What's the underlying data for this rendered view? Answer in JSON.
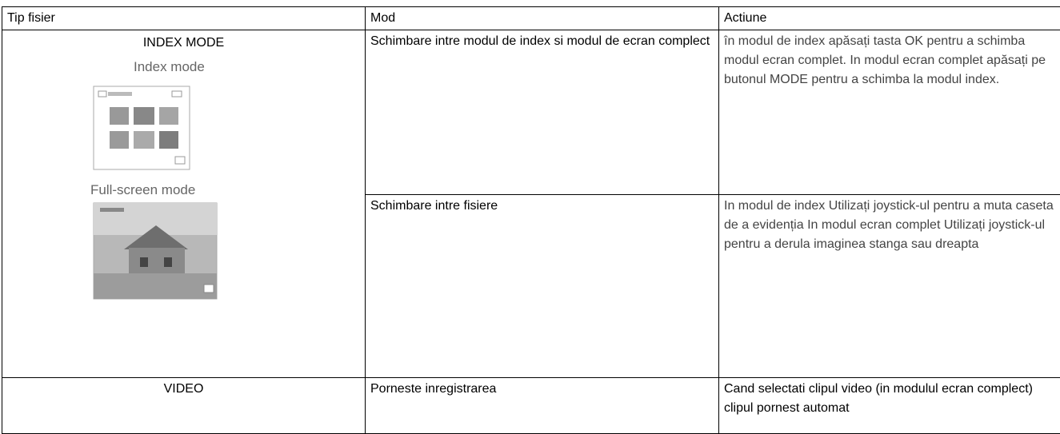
{
  "table": {
    "headers": [
      "Tip fisier",
      "Mod",
      "Actiune"
    ],
    "rows": [
      {
        "file_type": "INDEX MODE",
        "image_labels": [
          "Index mode",
          "Full-screen mode"
        ],
        "actions": [
          {
            "mode": "Schimbare intre modul de index si modul de ecran complect",
            "action": "în modul de index apăsați tasta OK pentru a schimba modul ecran complet. In modul ecran complet apăsați pe butonul MODE pentru a schimba la modul index."
          },
          {
            "mode": "Schimbare intre fisiere",
            "action": "In modul de index Utilizați joystick-ul pentru a muta caseta de a evidenția In modul ecran complet Utilizați joystick-ul pentru a derula imaginea stanga sau dreapta"
          }
        ]
      },
      {
        "file_type": "VIDEO",
        "actions": [
          {
            "mode": "Porneste inregistrarea",
            "action": "Cand selectati clipul video (in modulul ecran complect) clipul pornest automat"
          }
        ]
      }
    ]
  }
}
